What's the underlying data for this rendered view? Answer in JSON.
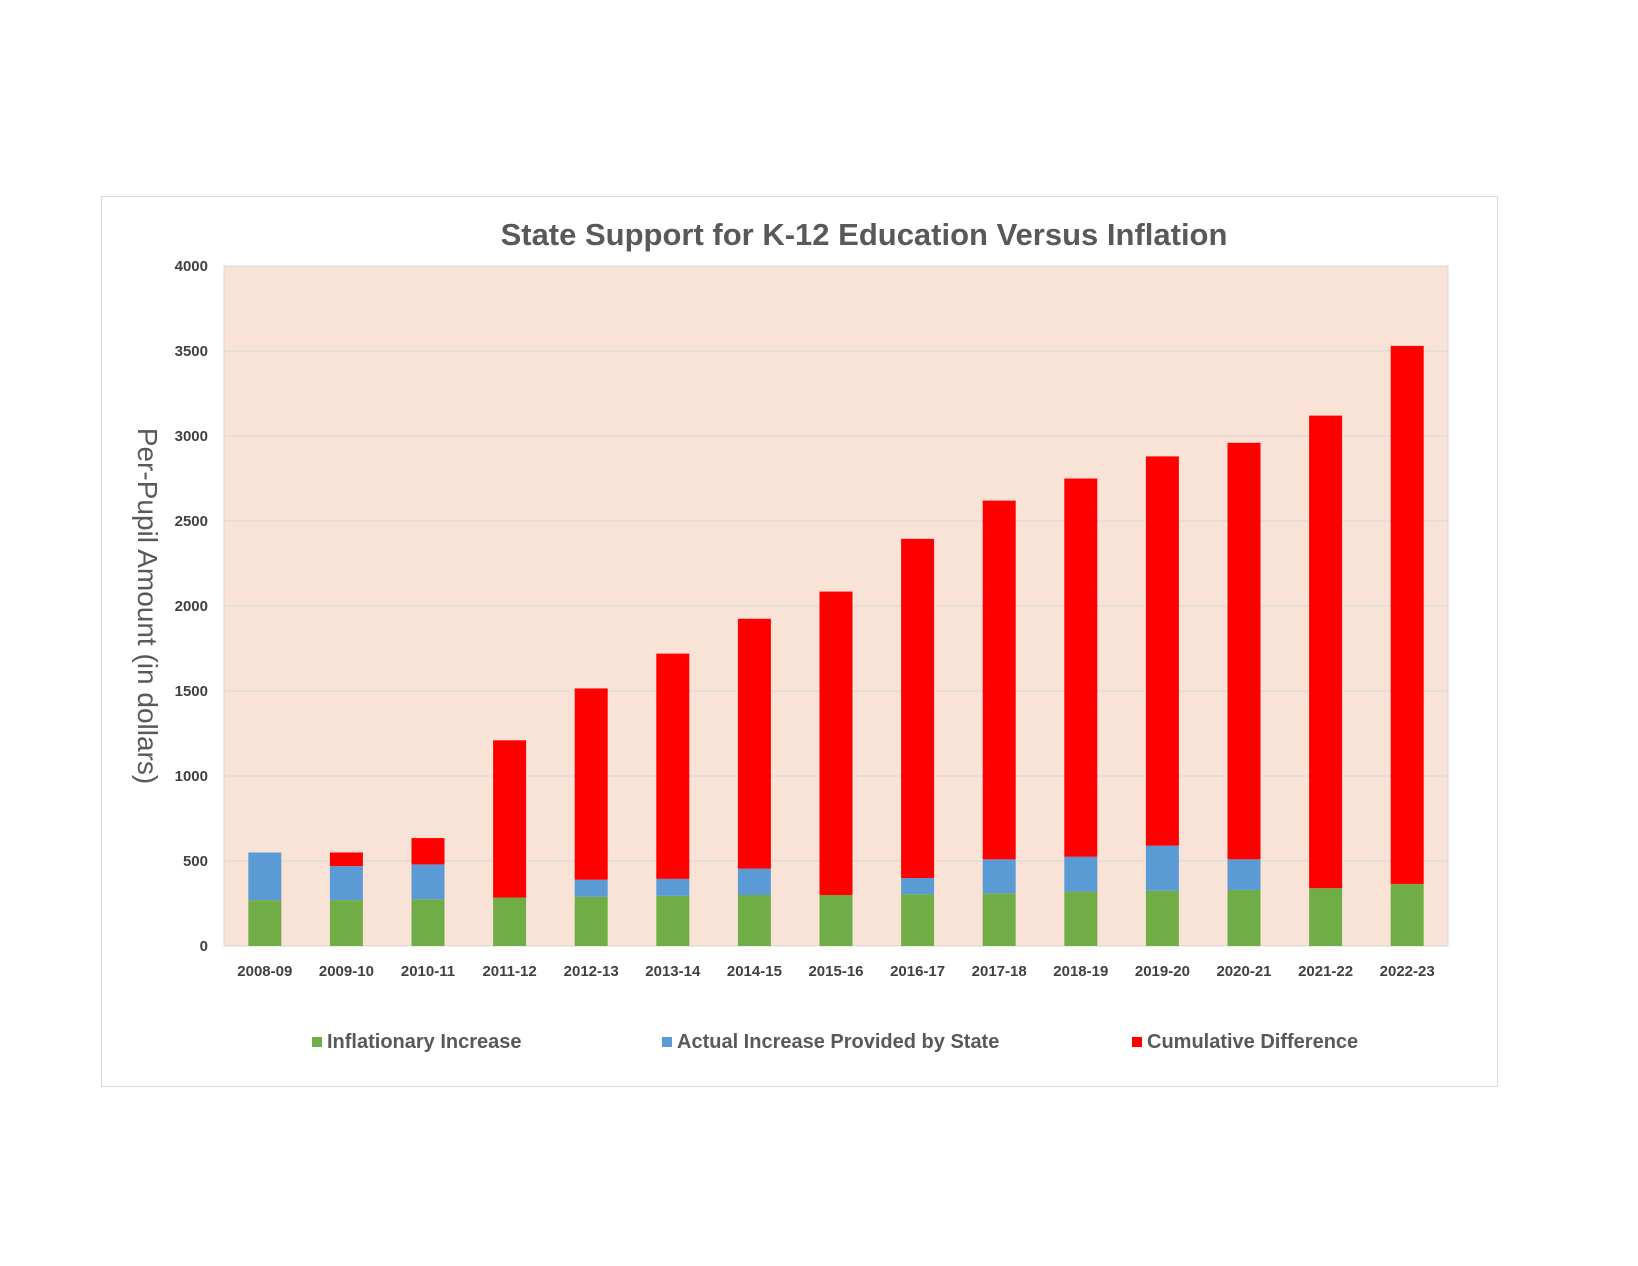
{
  "chart_data": {
    "type": "bar",
    "stacked": true,
    "title": "State Support for K-12 Education Versus Inflation",
    "xlabel": "",
    "ylabel": "Per-Pupil Amount (in dollars)",
    "ylim": [
      0,
      4000
    ],
    "yticks": [
      0,
      500,
      1000,
      1500,
      2000,
      2500,
      3000,
      3500,
      4000
    ],
    "grid": true,
    "legend_position": "bottom",
    "plot_background": "#f8e3d6",
    "categories": [
      "2008-09",
      "2009-10",
      "2010-11",
      "2011-12",
      "2012-13",
      "2013-14",
      "2014-15",
      "2015-16",
      "2016-17",
      "2017-18",
      "2018-19",
      "2019-20",
      "2020-21",
      "2021-22",
      "2022-23"
    ],
    "series": [
      {
        "name": "Inflationary Increase",
        "color": "#70ad47",
        "values": [
          270,
          270,
          275,
          285,
          290,
          295,
          300,
          300,
          305,
          310,
          320,
          325,
          330,
          340,
          365
        ]
      },
      {
        "name": "Actual Increase Provided by State",
        "color": "#5b9bd5",
        "values": [
          280,
          200,
          205,
          0,
          100,
          100,
          155,
          0,
          95,
          200,
          205,
          265,
          180,
          0,
          0
        ]
      },
      {
        "name": "Cumulative Difference",
        "color": "#ff0000",
        "values": [
          0,
          80,
          155,
          925,
          1125,
          1325,
          1470,
          1785,
          1995,
          2110,
          2225,
          2290,
          2450,
          2780,
          3165
        ]
      }
    ]
  }
}
